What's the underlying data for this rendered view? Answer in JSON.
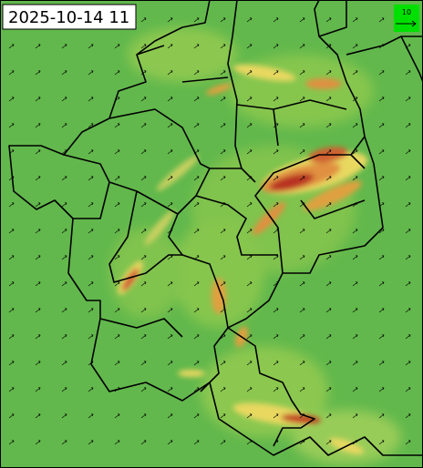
{
  "title": "2025-10-14 11",
  "legend": {
    "label": "10"
  }
}
